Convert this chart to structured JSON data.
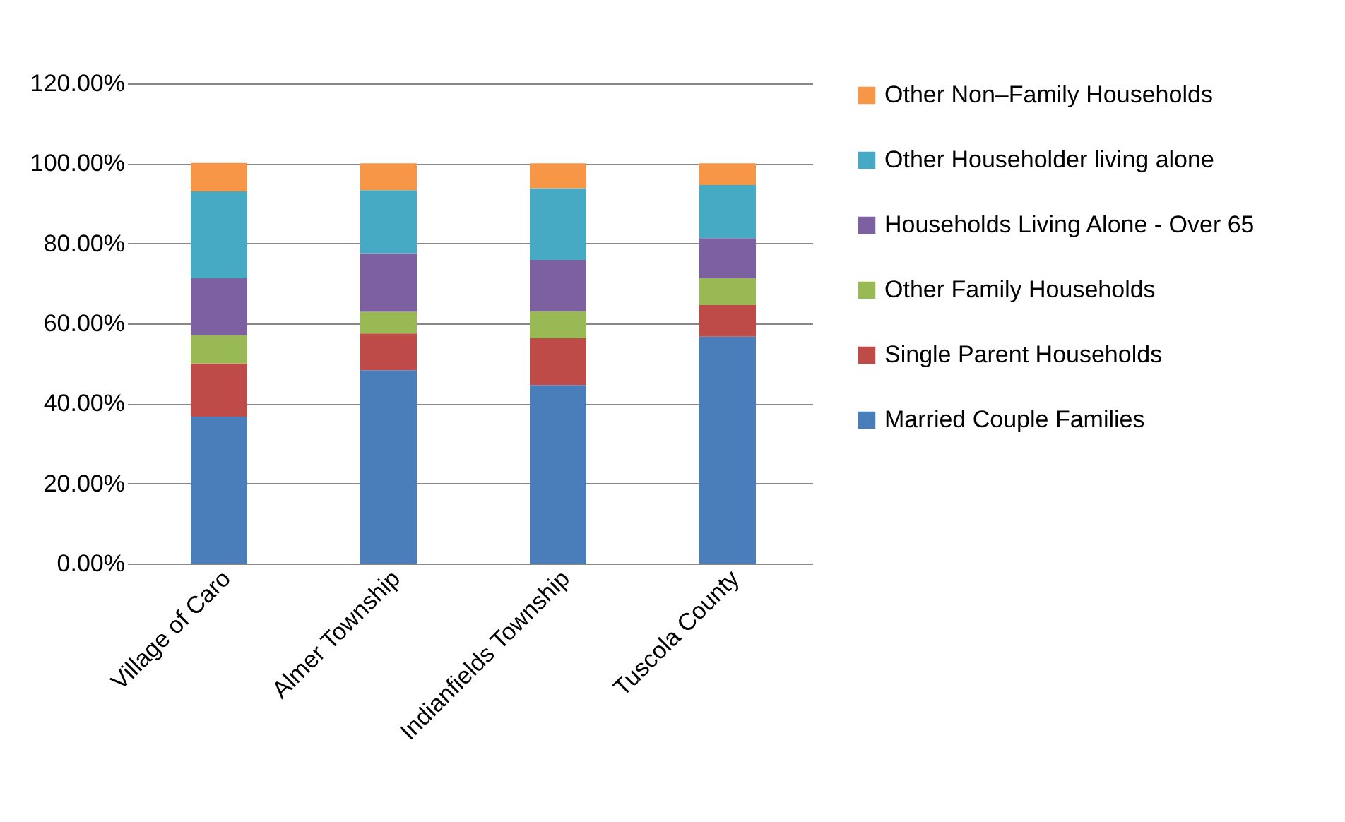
{
  "chart_data": {
    "type": "bar",
    "stacked": true,
    "categories": [
      "Village of Caro",
      "Almer Township",
      "Indianfields Township",
      "Tuscola County"
    ],
    "series": [
      {
        "name": "Married Couple Families",
        "color": "#4a7ebb",
        "values": [
          36.7,
          48.3,
          44.6,
          56.7
        ]
      },
      {
        "name": "Single Parent Households",
        "color": "#be4b48",
        "values": [
          13.3,
          9.2,
          11.7,
          7.9
        ]
      },
      {
        "name": "Other Family Households",
        "color": "#98b954",
        "values": [
          7.1,
          5.4,
          6.7,
          6.7
        ]
      },
      {
        "name": "Households Living Alone - Over 65",
        "color": "#7d60a0",
        "values": [
          14.2,
          14.6,
          12.9,
          10.0
        ]
      },
      {
        "name": "Other Householder living alone",
        "color": "#46aac5",
        "values": [
          21.7,
          15.8,
          17.9,
          13.3
        ]
      },
      {
        "name": "Other Non–Family Households",
        "color": "#f79646",
        "values": [
          7.1,
          6.7,
          6.2,
          5.4
        ]
      }
    ],
    "ylim": [
      0,
      120
    ],
    "yticks": [
      {
        "value": 0,
        "label": "0.00%"
      },
      {
        "value": 20,
        "label": "20.00%"
      },
      {
        "value": 40,
        "label": "40.00%"
      },
      {
        "value": 60,
        "label": "60.00%"
      },
      {
        "value": 80,
        "label": "80.00%"
      },
      {
        "value": 100,
        "label": "100.00%"
      },
      {
        "value": 120,
        "label": "120.00%"
      }
    ],
    "grid": "y",
    "legend": "right"
  }
}
